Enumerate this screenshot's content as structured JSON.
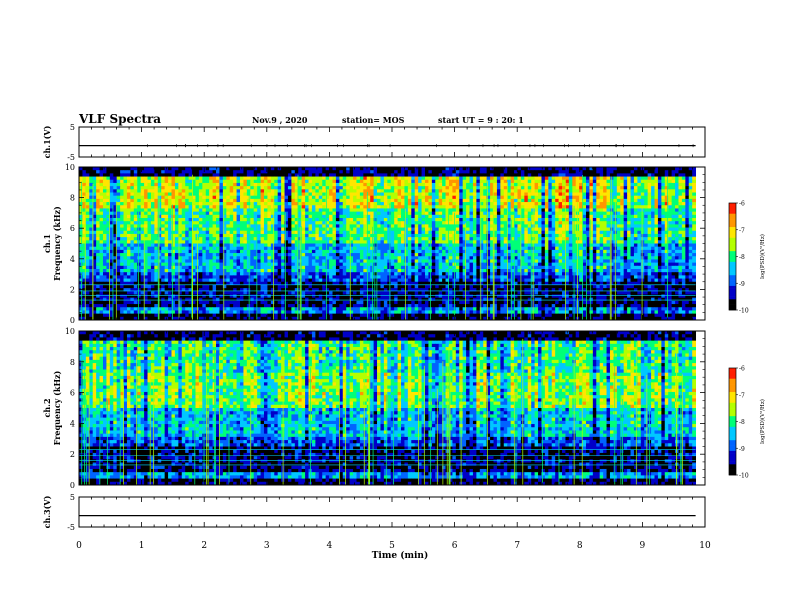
{
  "header": {
    "title": "VLF Spectra",
    "date": "Nov.9 , 2020",
    "station": "station= MOS",
    "start": "start UT = 9 : 20: 1"
  },
  "colors": {
    "colormap": [
      "#000000",
      "#0000c8",
      "#0064ff",
      "#00c8ff",
      "#00ff78",
      "#b4ff00",
      "#ffe600",
      "#ff9600",
      "#ff1e00",
      "#ffffff"
    ]
  },
  "chart_data": [
    {
      "type": "line",
      "panel": "ch1-waveform",
      "ylabel": "ch.1(V)",
      "ylim": [
        -5,
        5
      ],
      "yticks": [
        5,
        -5
      ],
      "xlim": [
        0,
        10
      ],
      "series": [
        {
          "x": [
            0,
            9.85
          ],
          "values": [
            -1.2,
            -1.2
          ]
        }
      ]
    },
    {
      "type": "heatmap",
      "panel": "ch1-spectrogram",
      "ylabel_top": "ch.1",
      "ylabel": "Frequency (kHz)",
      "ylim": [
        0,
        10
      ],
      "yticks": [
        0,
        2,
        4,
        6,
        8,
        10
      ],
      "xlim": [
        0,
        10
      ],
      "x_data_end": 9.85,
      "color_scale": {
        "label": "log(PSD)(V²/Hz)",
        "range": [
          -10,
          -6
        ],
        "ticks": [
          "-6",
          "-7",
          "-8",
          "-9",
          "-10"
        ]
      }
    },
    {
      "type": "heatmap",
      "panel": "ch2-spectrogram",
      "ylabel_top": "ch.2",
      "ylabel": "Frequency (kHz)",
      "ylim": [
        0,
        10
      ],
      "yticks": [
        0,
        2,
        4,
        6,
        8,
        10
      ],
      "xlim": [
        0,
        10
      ],
      "x_data_end": 9.85,
      "color_scale": {
        "label": "log(PSD)(V²/Hz)",
        "range": [
          -10,
          -6
        ],
        "ticks": [
          "-6",
          "-7",
          "-8",
          "-9",
          "-10"
        ]
      }
    },
    {
      "type": "line",
      "panel": "ch3-waveform",
      "ylabel": "ch.3(V)",
      "ylim": [
        -5,
        5
      ],
      "yticks": [
        5,
        -5
      ],
      "xlim": [
        0,
        10
      ],
      "series": [
        {
          "x": [
            0,
            9.85
          ],
          "values": [
            -1.2,
            -1.2
          ]
        }
      ]
    }
  ],
  "xaxis": {
    "label": "Time (min)",
    "ticks": [
      "0",
      "1",
      "2",
      "3",
      "4",
      "5",
      "6",
      "7",
      "8",
      "9",
      "10"
    ]
  }
}
